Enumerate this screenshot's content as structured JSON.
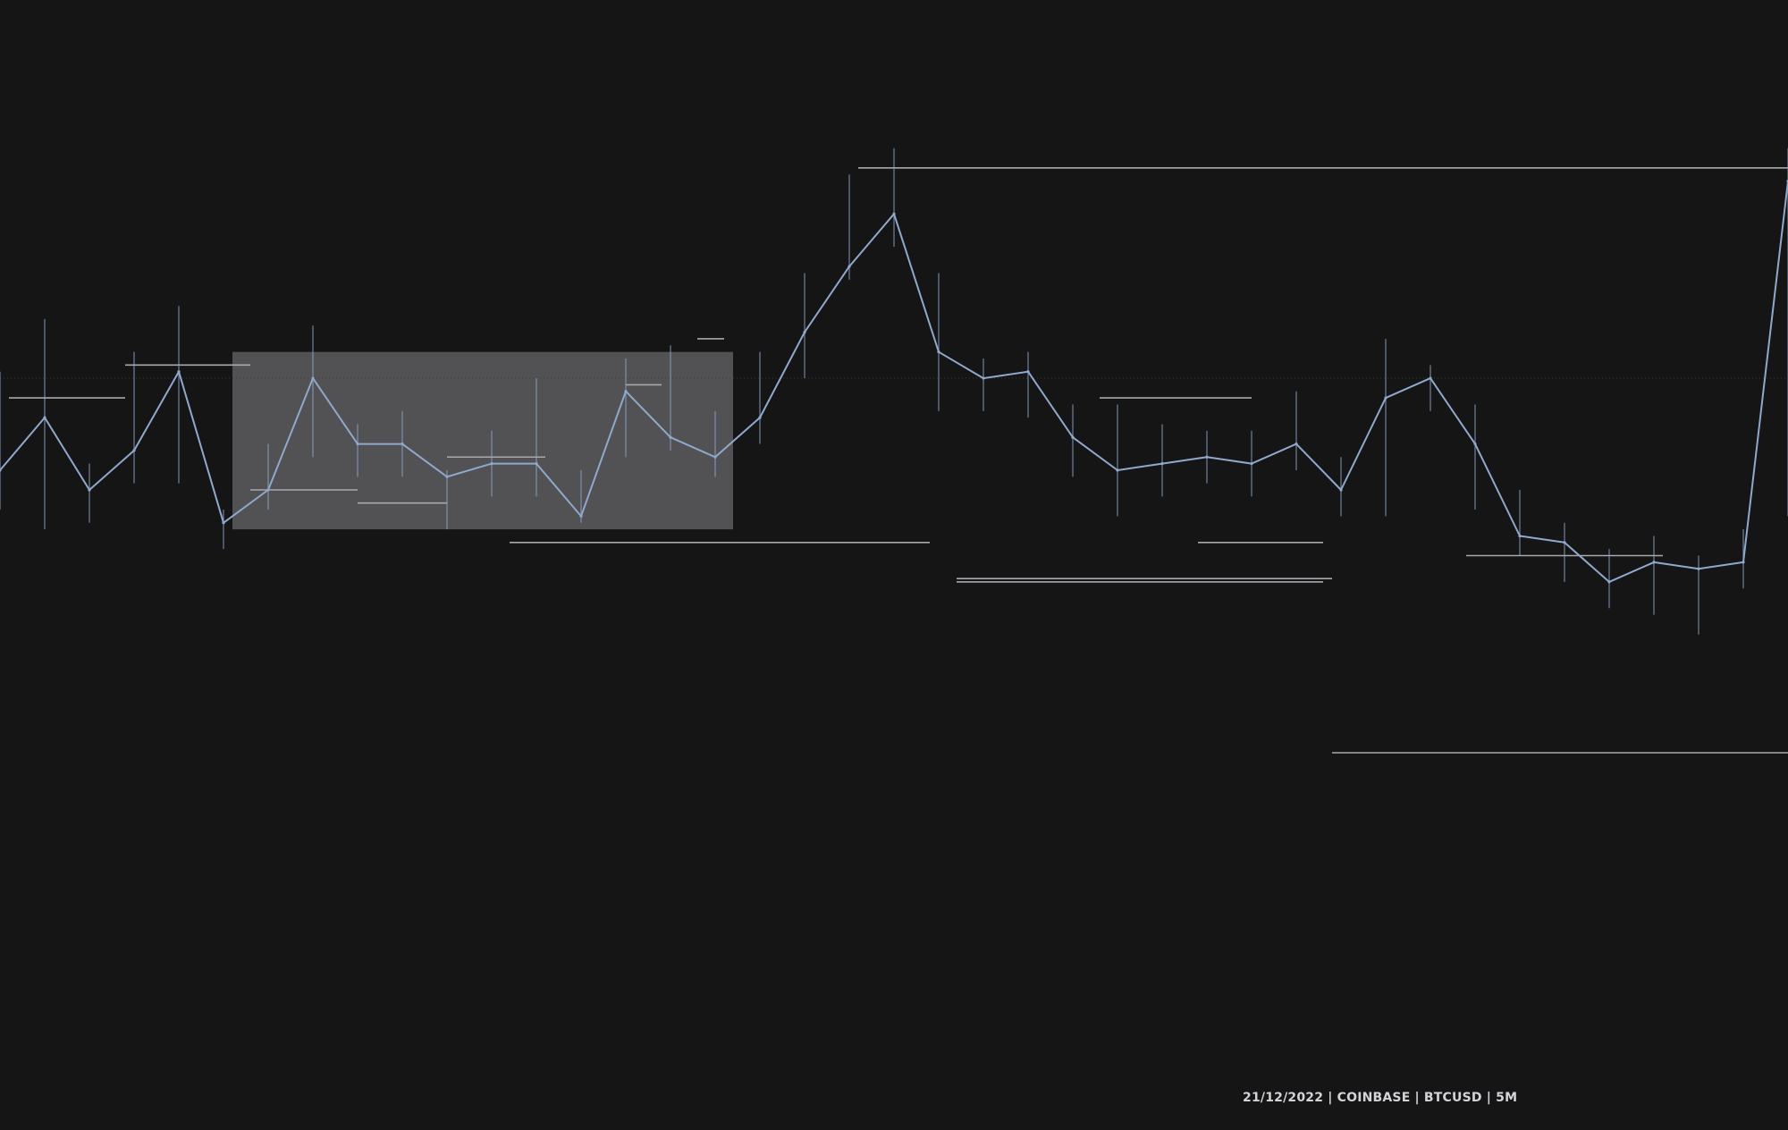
{
  "footer": {
    "label": "21/12/2022 | COINBASE | BTCUSD | 5M"
  },
  "colors": {
    "background": "#151516",
    "price_line": "#8fa9cc",
    "level_line": "#a7a9ad",
    "zone_fill": "#5d5d5f",
    "dotted_line": "#3b3d41",
    "footer_text": "#d2d4d8"
  },
  "chart_data": {
    "type": "line",
    "grid": false,
    "legend": "none",
    "x": [
      0,
      2.5,
      5,
      7.5,
      10,
      12.5,
      15,
      17.5,
      20,
      22.5,
      25,
      27.5,
      30,
      32.5,
      35,
      37.5,
      40,
      42.5,
      45,
      47.5,
      50,
      52.5,
      55,
      57.5,
      60,
      62.5,
      65,
      67.5,
      70,
      72.5,
      75,
      77.5,
      80,
      82.5,
      85,
      87.5,
      90,
      92.5,
      95,
      97.5,
      100
    ],
    "series": [
      {
        "values": [
          43,
          51,
          40,
          46,
          58,
          35,
          40,
          57,
          47,
          47,
          42,
          44,
          44,
          36,
          55,
          48,
          45,
          51,
          64,
          74,
          82,
          61,
          57,
          58,
          48,
          43,
          44,
          45,
          44,
          47,
          40,
          54,
          57,
          47,
          33,
          32,
          26,
          29,
          28,
          29,
          87
        ],
        "high": [
          58,
          66,
          44,
          61,
          68,
          37,
          47,
          65,
          50,
          52,
          43,
          49,
          57,
          43,
          60,
          62,
          52,
          61,
          73,
          88,
          92,
          73,
          60,
          61,
          53,
          53,
          50,
          49,
          49,
          55,
          45,
          63,
          59,
          53,
          40,
          35,
          31,
          33,
          30,
          34,
          92
        ],
        "low": [
          37,
          34,
          35,
          41,
          41,
          31,
          37,
          45,
          42,
          42,
          34,
          39,
          39,
          35,
          45,
          46,
          42,
          47,
          57,
          72,
          77,
          52,
          52,
          51,
          42,
          36,
          39,
          41,
          39,
          43,
          36,
          36,
          52,
          37,
          30,
          26,
          22,
          21,
          18,
          25,
          36
        ]
      }
    ],
    "levels": [
      {
        "x0": 0.5,
        "x1": 7,
        "y": 54
      },
      {
        "x0": 7,
        "x1": 14,
        "y": 59
      },
      {
        "x0": 14,
        "x1": 20,
        "y": 40
      },
      {
        "x0": 20,
        "x1": 25,
        "y": 38
      },
      {
        "x0": 25,
        "x1": 30.5,
        "y": 45
      },
      {
        "x0": 35,
        "x1": 37,
        "y": 56
      },
      {
        "x0": 28.5,
        "x1": 52,
        "y": 32
      },
      {
        "x0": 39,
        "x1": 40.5,
        "y": 63
      },
      {
        "x0": 48,
        "x1": 100,
        "y": 89
      },
      {
        "x0": 53.5,
        "x1": 74,
        "y": 26
      },
      {
        "x0": 53.5,
        "x1": 74.5,
        "y": 26.5
      },
      {
        "x0": 61.5,
        "x1": 70,
        "y": 54
      },
      {
        "x0": 67,
        "x1": 74,
        "y": 32
      },
      {
        "x0": 74.5,
        "x1": 100,
        "y": 0
      },
      {
        "x0": 82,
        "x1": 93,
        "y": 30
      }
    ],
    "zone": {
      "x0": 13,
      "x1": 41,
      "y0": 34,
      "y1": 61
    },
    "reference_y": 57,
    "ylim": [
      0,
      100
    ],
    "xlim": [
      0,
      100
    ]
  }
}
